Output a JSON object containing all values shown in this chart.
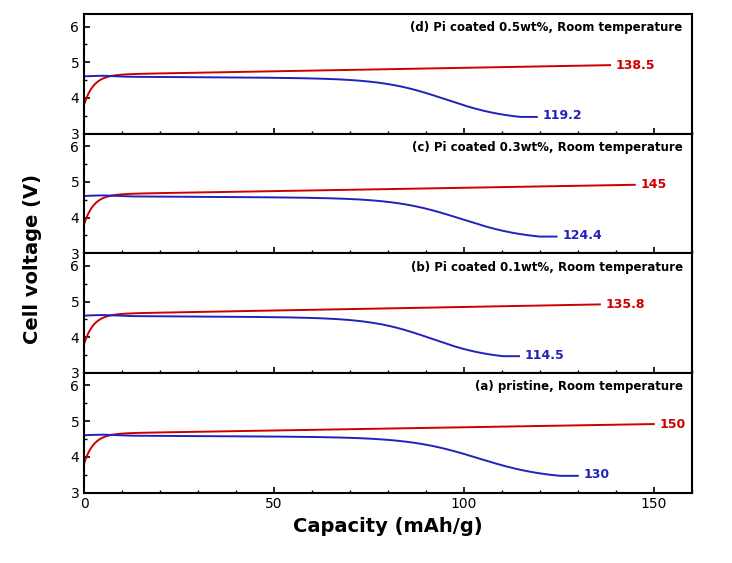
{
  "panels": [
    {
      "label": "(a) pristine, Room temperature",
      "charge_capacity": 150,
      "discharge_capacity": 130,
      "charge_label": "150",
      "discharge_label": "130"
    },
    {
      "label": "(b) Pi coated 0.1wt%, Room temperature",
      "charge_capacity": 135.8,
      "discharge_capacity": 114.5,
      "charge_label": "135.8",
      "discharge_label": "114.5"
    },
    {
      "label": "(c) Pi coated 0.3wt%, Room temperature",
      "charge_capacity": 145,
      "discharge_capacity": 124.4,
      "charge_label": "145",
      "discharge_label": "124.4"
    },
    {
      "label": "(d) Pi coated 0.5wt%, Room temperature",
      "charge_capacity": 138.5,
      "discharge_capacity": 119.2,
      "charge_label": "138.5",
      "discharge_label": "119.2"
    }
  ],
  "xlim": [
    0,
    160
  ],
  "ylim": [
    3.0,
    6.35
  ],
  "yticks": [
    3,
    4,
    5,
    6
  ],
  "xticks": [
    0,
    50,
    100,
    150
  ],
  "xlabel": "Capacity (mAh/g)",
  "ylabel": "Cell voltage (V)",
  "charge_color": "#cc0000",
  "discharge_color": "#2222bb",
  "label_color_charge": "#cc0000",
  "label_color_discharge": "#2222bb",
  "background_color": "#ffffff"
}
